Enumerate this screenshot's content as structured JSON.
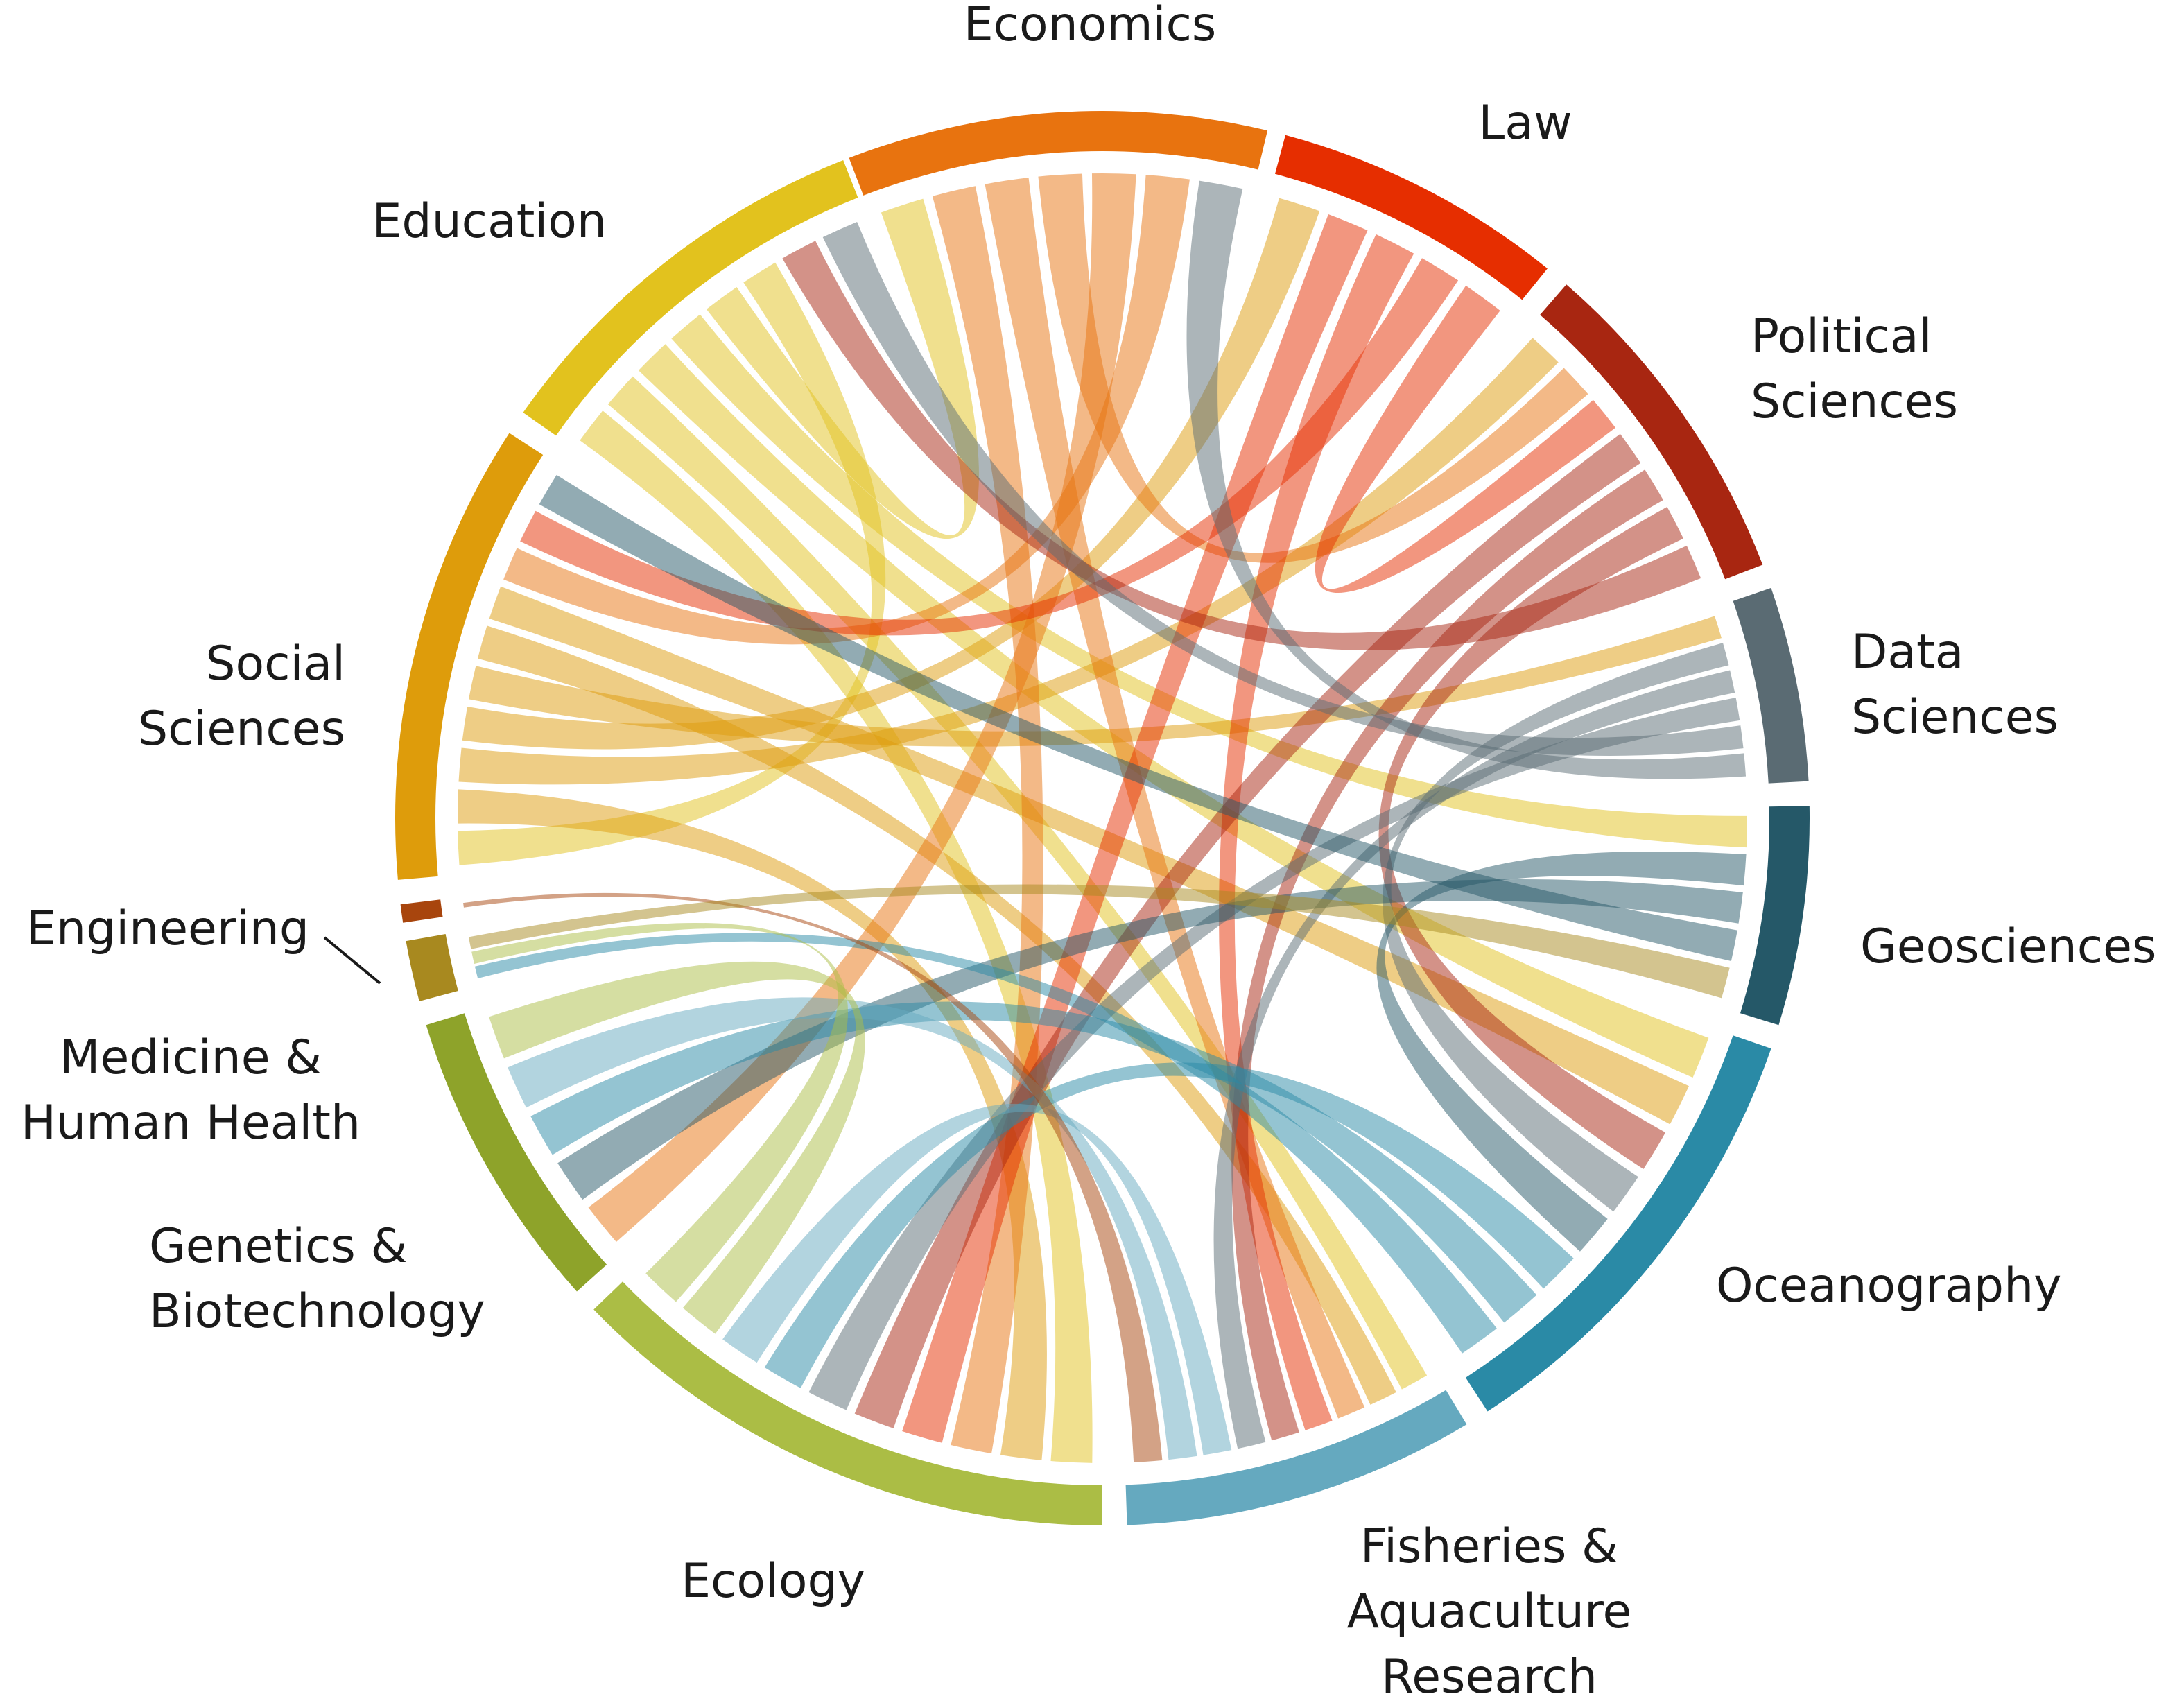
{
  "diagram": {
    "type": "chord",
    "segments": [
      {
        "id": "economics",
        "lines": [
          "Economics"
        ],
        "color": "#e8730f"
      },
      {
        "id": "law",
        "lines": [
          "Law"
        ],
        "color": "#e62e00"
      },
      {
        "id": "political",
        "lines": [
          "Political",
          "Sciences"
        ],
        "color": "#a82611"
      },
      {
        "id": "data",
        "lines": [
          "Data",
          "Sciences"
        ],
        "color": "#5a6b73"
      },
      {
        "id": "geo",
        "lines": [
          "Geosciences"
        ],
        "color": "#255868"
      },
      {
        "id": "ocean",
        "lines": [
          "Oceanography"
        ],
        "color": "#2a8aa6"
      },
      {
        "id": "fisheries",
        "lines": [
          "Fisheries &",
          "Aquaculture",
          "Research"
        ],
        "color": "#65a9bf"
      },
      {
        "id": "ecology",
        "lines": [
          "Ecology"
        ],
        "color": "#abbd45"
      },
      {
        "id": "genetics",
        "lines": [
          "Genetics &",
          "Biotechnology"
        ],
        "color": "#8ea32a"
      },
      {
        "id": "medicine",
        "lines": [
          "Medicine &",
          "Human Health"
        ],
        "color": "#a8891f"
      },
      {
        "id": "engineering",
        "lines": [
          "Engineering"
        ],
        "color": "#a8450d"
      },
      {
        "id": "social",
        "lines": [
          "Social",
          "Sciences"
        ],
        "color": "#de9c0b"
      },
      {
        "id": "education",
        "lines": [
          "Education"
        ],
        "color": "#e2c21e"
      }
    ],
    "links": [
      {
        "source": "education",
        "target": "ecology"
      },
      {
        "source": "education",
        "target": "fisheries"
      },
      {
        "source": "education",
        "target": "ocean"
      },
      {
        "source": "education",
        "target": "geo"
      },
      {
        "source": "education",
        "target": "economics"
      },
      {
        "source": "education",
        "target": "social"
      },
      {
        "source": "social",
        "target": "ecology"
      },
      {
        "source": "social",
        "target": "political"
      },
      {
        "source": "social",
        "target": "law"
      },
      {
        "source": "social",
        "target": "data"
      },
      {
        "source": "social",
        "target": "fisheries"
      },
      {
        "source": "social",
        "target": "ocean"
      },
      {
        "source": "economics",
        "target": "ecology"
      },
      {
        "source": "economics",
        "target": "fisheries"
      },
      {
        "source": "economics",
        "target": "political"
      },
      {
        "source": "economics",
        "target": "genetics"
      },
      {
        "source": "economics",
        "target": "social"
      },
      {
        "source": "law",
        "target": "ecology"
      },
      {
        "source": "law",
        "target": "fisheries"
      },
      {
        "source": "law",
        "target": "social"
      },
      {
        "source": "law",
        "target": "political"
      },
      {
        "source": "political",
        "target": "ecology"
      },
      {
        "source": "political",
        "target": "fisheries"
      },
      {
        "source": "political",
        "target": "ocean"
      },
      {
        "source": "political",
        "target": "education"
      },
      {
        "source": "data",
        "target": "ocean"
      },
      {
        "source": "data",
        "target": "fisheries"
      },
      {
        "source": "data",
        "target": "ecology"
      },
      {
        "source": "data",
        "target": "education"
      },
      {
        "source": "data",
        "target": "economics"
      },
      {
        "source": "geo",
        "target": "ocean"
      },
      {
        "source": "geo",
        "target": "genetics"
      },
      {
        "source": "geo",
        "target": "social"
      },
      {
        "source": "ocean",
        "target": "ecology"
      },
      {
        "source": "ocean",
        "target": "genetics"
      },
      {
        "source": "ocean",
        "target": "medicine"
      },
      {
        "source": "fisheries",
        "target": "ecology"
      },
      {
        "source": "fisheries",
        "target": "genetics"
      },
      {
        "source": "ecology",
        "target": "genetics"
      },
      {
        "source": "ecology",
        "target": "medicine"
      },
      {
        "source": "engineering",
        "target": "fisheries"
      },
      {
        "source": "medicine",
        "target": "geo"
      }
    ]
  }
}
